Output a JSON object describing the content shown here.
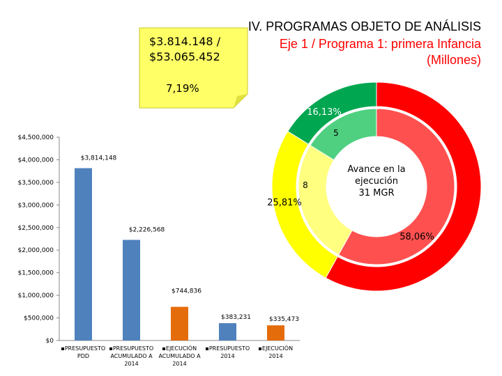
{
  "header": {
    "title": "IV. PROGRAMAS OBJETO DE ANÁLISIS",
    "subtitle": "Eje 1 / Programa 1: primera Infancia",
    "unit": "(Millones)"
  },
  "note": {
    "lines": [
      "$3.814.148 /",
      "$53.065.452"
    ],
    "percent": "7,19%"
  },
  "chart_data": [
    {
      "type": "bar",
      "categories": [
        "PRESUPUESTO PDD",
        "PRESUPUESTO ACUMULADO A 2014",
        "EJECUCIÓN ACUMULADO A 2014",
        "PRESUPUESTO 2014",
        "EJECUCIÓN 2014"
      ],
      "values": [
        3814148,
        2226568,
        744836,
        383231,
        335473
      ],
      "value_labels": [
        "$3,814,148",
        "$2,226,568",
        "$744,836",
        "$383,231",
        "$335,473"
      ],
      "colors": [
        "#4f81bd",
        "#4f81bd",
        "#e46c0a",
        "#4f81bd",
        "#e46c0a"
      ],
      "ylim": [
        0,
        4500000
      ],
      "yticks": [
        {
          "value": 0,
          "label": "$0"
        },
        {
          "value": 500000,
          "label": "$500,000"
        },
        {
          "value": 1000000,
          "label": "$1,000,000"
        },
        {
          "value": 1500000,
          "label": "$1,500,000"
        },
        {
          "value": 2000000,
          "label": "$2,000,000"
        },
        {
          "value": 2500000,
          "label": "$2,500,000"
        },
        {
          "value": 3000000,
          "label": "$3,000,000"
        },
        {
          "value": 3500000,
          "label": "$3,500,000"
        },
        {
          "value": 4000000,
          "label": "$4,000,000"
        },
        {
          "value": 4500000,
          "label": "$4,500,000"
        }
      ]
    },
    {
      "type": "donut",
      "center_lines": [
        "Avance en la",
        "ejecución",
        "31 MGR"
      ],
      "series": [
        {
          "values": [
            16.13,
            25.81,
            58.06
          ],
          "value_labels": [
            "16,13%",
            "25,81%",
            "58,06%"
          ],
          "colors": [
            "#00a650",
            "#ffff00",
            "#ff0000"
          ]
        },
        {
          "values": [
            5,
            8,
            18
          ],
          "colors": [
            "#4fd080",
            "#ffff80",
            "#ff5050"
          ]
        }
      ]
    }
  ]
}
